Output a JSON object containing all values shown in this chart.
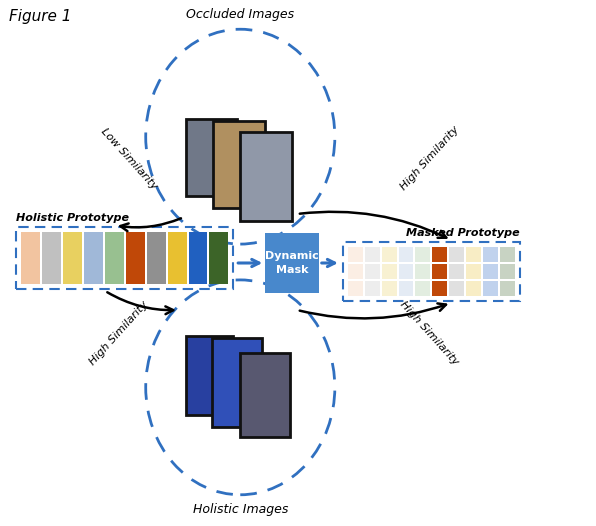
{
  "holistic_colors": [
    "#F2C4A0",
    "#C0C0C0",
    "#E8D060",
    "#A0B8D8",
    "#98C090",
    "#C04808",
    "#909090",
    "#E8C030",
    "#2060C0",
    "#3C6428"
  ],
  "dynamic_mask_color": "#4888CC",
  "dashed_color": "#3070C0",
  "fig_label": "Figure 1",
  "label_occluded": "Occluded Images",
  "label_holistic_img": "Holistic Images",
  "label_holistic_proto": "Holistic Prototype",
  "label_masked_proto": "Masked Prototype",
  "label_dynamic": "Dynamic\nMask",
  "label_low_sim": "Low Similarity",
  "label_high_sim1": "High Similarity",
  "label_high_sim2": "High Similarity",
  "label_high_sim3": "High Similarity",
  "masked_alpha_bright": [
    5
  ],
  "masked_alpha_dim": 0.28
}
